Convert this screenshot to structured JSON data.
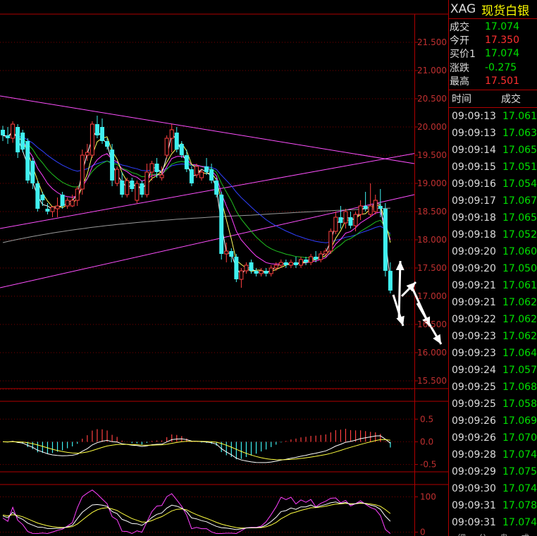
{
  "quote": {
    "symbol": "XAG",
    "name": "现货白银",
    "rows": [
      {
        "label": "成交",
        "value": "17.074",
        "color": "#00e000"
      },
      {
        "label": "今开",
        "value": "17.350",
        "color": "#ff3030"
      },
      {
        "label": "买价1",
        "value": "17.074",
        "color": "#00e000"
      },
      {
        "label": "涨跌",
        "value": "-0.275",
        "color": "#00e000"
      },
      {
        "label": "最高",
        "value": "17.501",
        "color": "#ff3030"
      }
    ]
  },
  "ticks": {
    "col_time": "时间",
    "col_price": "成交",
    "rows": [
      {
        "time": "09:09:13",
        "price": "17.061"
      },
      {
        "time": "09:09:13",
        "price": "17.063"
      },
      {
        "time": "09:09:14",
        "price": "17.065"
      },
      {
        "time": "09:09:15",
        "price": "17.051"
      },
      {
        "time": "09:09:16",
        "price": "17.054"
      },
      {
        "time": "09:09:17",
        "price": "17.067"
      },
      {
        "time": "09:09:18",
        "price": "17.065"
      },
      {
        "time": "09:09:18",
        "price": "17.052"
      },
      {
        "time": "09:09:20",
        "price": "17.060"
      },
      {
        "time": "09:09:20",
        "price": "17.050"
      },
      {
        "time": "09:09:21",
        "price": "17.061"
      },
      {
        "time": "09:09:21",
        "price": "17.062"
      },
      {
        "time": "09:09:22",
        "price": "17.062"
      },
      {
        "time": "09:09:23",
        "price": "17.062"
      },
      {
        "time": "09:09:23",
        "price": "17.064"
      },
      {
        "time": "09:09:24",
        "price": "17.057"
      },
      {
        "time": "09:09:25",
        "price": "17.068"
      },
      {
        "time": "09:09:25",
        "price": "17.058"
      },
      {
        "time": "09:09:26",
        "price": "17.069"
      },
      {
        "time": "09:09:26",
        "price": "17.070"
      },
      {
        "time": "09:09:28",
        "price": "17.074"
      },
      {
        "time": "09:09:29",
        "price": "17.075"
      },
      {
        "time": "09:09:30",
        "price": "17.074"
      },
      {
        "time": "09:09:31",
        "price": "17.078"
      },
      {
        "time": "09:09:31",
        "price": "17.074"
      }
    ]
  },
  "bottom_tabs": [
    "细",
    "分",
    "盘",
    "成"
  ],
  "chart_data": [
    {
      "type": "candlestick",
      "ylim": [
        15.4,
        21.75
      ],
      "yticks": [
        "21.500",
        "21.000",
        "20.500",
        "20.000",
        "19.500",
        "19.000",
        "18.500",
        "18.000",
        "17.500",
        "17.000",
        "16.500",
        "16.000",
        "15.500"
      ],
      "up_color": "#ff4040",
      "down_color": "#40f0f0",
      "candles": [
        [
          19.95,
          20.02,
          19.75,
          19.85
        ],
        [
          19.85,
          20.0,
          19.7,
          19.8
        ],
        [
          19.8,
          20.1,
          19.72,
          20.05
        ],
        [
          20.0,
          20.05,
          19.45,
          19.55
        ],
        [
          19.9,
          19.95,
          19.55,
          19.6
        ],
        [
          19.75,
          19.8,
          19.0,
          19.05
        ],
        [
          19.4,
          19.45,
          18.9,
          19.0
        ],
        [
          19.0,
          19.05,
          18.5,
          18.55
        ],
        [
          18.8,
          18.85,
          18.6,
          18.7
        ],
        [
          18.55,
          18.65,
          18.45,
          18.5
        ],
        [
          18.5,
          18.6,
          18.4,
          18.58
        ],
        [
          18.55,
          18.75,
          18.4,
          18.6
        ],
        [
          18.8,
          18.85,
          18.55,
          18.6
        ],
        [
          18.6,
          18.75,
          18.55,
          18.7
        ],
        [
          18.6,
          18.8,
          18.58,
          18.7
        ],
        [
          18.7,
          18.95,
          18.6,
          18.9
        ],
        [
          18.9,
          19.6,
          18.8,
          19.5
        ],
        [
          19.5,
          19.7,
          19.4,
          19.55
        ],
        [
          19.5,
          20.1,
          19.45,
          20.05
        ],
        [
          20.05,
          20.2,
          19.8,
          19.85
        ],
        [
          20.0,
          20.15,
          19.7,
          19.75
        ],
        [
          19.75,
          19.8,
          19.6,
          19.65
        ],
        [
          19.6,
          19.7,
          18.95,
          19.05
        ],
        [
          19.0,
          19.3,
          18.95,
          19.25
        ],
        [
          19.05,
          19.2,
          18.75,
          18.8
        ],
        [
          18.8,
          19.1,
          18.75,
          19.05
        ],
        [
          19.05,
          19.1,
          18.85,
          18.9
        ],
        [
          18.7,
          19.05,
          18.65,
          19.0
        ],
        [
          19.0,
          19.05,
          18.75,
          18.8
        ],
        [
          18.8,
          19.35,
          18.75,
          19.2
        ],
        [
          19.2,
          19.4,
          19.05,
          19.35
        ],
        [
          19.35,
          19.45,
          19.1,
          19.2
        ],
        [
          19.1,
          19.3,
          19.05,
          19.15
        ],
        [
          19.5,
          19.85,
          19.45,
          19.8
        ],
        [
          19.8,
          20.05,
          19.55,
          19.95
        ],
        [
          19.9,
          20.0,
          19.55,
          19.6
        ],
        [
          19.7,
          19.75,
          19.45,
          19.5
        ],
        [
          19.5,
          19.6,
          19.2,
          19.25
        ],
        [
          19.25,
          19.3,
          18.95,
          19.0
        ],
        [
          19.15,
          19.35,
          19.1,
          19.3
        ],
        [
          19.1,
          19.25,
          19.05,
          19.2
        ],
        [
          19.3,
          19.45,
          19.15,
          19.2
        ],
        [
          19.25,
          19.35,
          19.0,
          19.05
        ],
        [
          19.05,
          19.1,
          18.75,
          18.8
        ],
        [
          18.8,
          18.85,
          17.65,
          17.75
        ],
        [
          17.75,
          17.95,
          17.6,
          17.8
        ],
        [
          17.8,
          17.85,
          17.6,
          17.7
        ],
        [
          17.7,
          17.75,
          17.25,
          17.3
        ],
        [
          17.3,
          17.5,
          17.15,
          17.45
        ],
        [
          17.45,
          17.6,
          17.4,
          17.55
        ],
        [
          17.6,
          17.65,
          17.4,
          17.45
        ],
        [
          17.45,
          17.5,
          17.35,
          17.4
        ],
        [
          17.4,
          17.5,
          17.35,
          17.45
        ],
        [
          17.45,
          17.5,
          17.35,
          17.4
        ],
        [
          17.4,
          17.55,
          17.35,
          17.5
        ],
        [
          17.5,
          17.6,
          17.45,
          17.55
        ],
        [
          17.55,
          17.65,
          17.5,
          17.6
        ],
        [
          17.6,
          17.65,
          17.5,
          17.55
        ],
        [
          17.55,
          17.65,
          17.5,
          17.6
        ],
        [
          17.6,
          17.7,
          17.5,
          17.55
        ],
        [
          17.55,
          17.7,
          17.5,
          17.65
        ],
        [
          17.65,
          17.7,
          17.55,
          17.6
        ],
        [
          17.6,
          17.75,
          17.55,
          17.7
        ],
        [
          17.7,
          17.8,
          17.6,
          17.65
        ],
        [
          17.65,
          17.8,
          17.6,
          17.75
        ],
        [
          17.75,
          17.85,
          17.7,
          17.8
        ],
        [
          17.8,
          18.2,
          17.75,
          18.15
        ],
        [
          18.15,
          18.5,
          18.1,
          18.4
        ],
        [
          18.4,
          18.6,
          18.2,
          18.3
        ],
        [
          18.3,
          18.55,
          18.2,
          18.5
        ],
        [
          18.4,
          18.5,
          18.2,
          18.25
        ],
        [
          18.25,
          18.5,
          18.15,
          18.45
        ],
        [
          18.45,
          18.7,
          18.35,
          18.6
        ],
        [
          18.6,
          18.85,
          18.5,
          18.55
        ],
        [
          18.45,
          19.0,
          18.4,
          18.6
        ],
        [
          18.5,
          18.8,
          18.45,
          18.7
        ],
        [
          18.6,
          18.9,
          18.4,
          18.55
        ],
        [
          18.55,
          18.65,
          17.35,
          17.45
        ],
        [
          17.45,
          17.6,
          17.05,
          17.1
        ]
      ]
    },
    {
      "type": "macd",
      "ylim": [
        -0.6,
        0.8
      ],
      "yticks": [
        "0.5",
        "0.0",
        "-0.5"
      ]
    },
    {
      "type": "oscillator",
      "ylim": [
        -5,
        125
      ],
      "yticks": [
        "100",
        "0"
      ]
    }
  ]
}
